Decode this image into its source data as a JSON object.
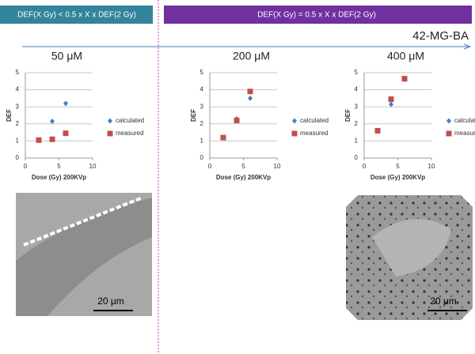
{
  "banners": [
    "DEF(X Gy) < 0.5 x X x DEF(2 Gy)",
    "DEF(X Gy)  = 0.5 x X x DEF(2 Gy)"
  ],
  "cell_line": "42-MG-BA",
  "scale_bars": [
    "20 μm",
    "20 μm"
  ],
  "chart_data": [
    {
      "type": "scatter",
      "title": "50 μM",
      "xlabel": "Dose (Gy) 200KVp",
      "ylabel": "DEF",
      "xlim": [
        0,
        10
      ],
      "ylim": [
        0,
        5
      ],
      "xticks": [
        0,
        5,
        10
      ],
      "yticks": [
        0,
        1,
        2,
        3,
        4,
        5
      ],
      "grid": true,
      "series": [
        {
          "name": "calculated",
          "color": "#4a7ebb",
          "marker": "diamond",
          "x": [
            4,
            6
          ],
          "values": [
            2.15,
            3.2
          ]
        },
        {
          "name": "measured",
          "color": "#c0504d",
          "marker": "square",
          "x": [
            2,
            4,
            6
          ],
          "values": [
            1.05,
            1.1,
            1.45
          ]
        }
      ]
    },
    {
      "type": "scatter",
      "title": "200 μM",
      "xlabel": "Dose (Gy) 200KVp",
      "ylabel": "DEF",
      "xlim": [
        0,
        10
      ],
      "ylim": [
        0,
        5
      ],
      "xticks": [
        0,
        5,
        10
      ],
      "yticks": [
        0,
        1,
        2,
        3,
        4,
        5
      ],
      "grid": true,
      "series": [
        {
          "name": "calculated",
          "color": "#4a7ebb",
          "marker": "diamond",
          "x": [
            4,
            6
          ],
          "values": [
            2.3,
            3.5
          ]
        },
        {
          "name": "measured",
          "color": "#c0504d",
          "marker": "square",
          "x": [
            2,
            4,
            6
          ],
          "values": [
            1.2,
            2.2,
            3.9
          ]
        }
      ]
    },
    {
      "type": "scatter",
      "title": "400 μM",
      "xlabel": "Dose (Gy) 200KVp",
      "ylabel": "DEF",
      "xlim": [
        0,
        10
      ],
      "ylim": [
        0,
        5
      ],
      "xticks": [
        0,
        5,
        10
      ],
      "yticks": [
        0,
        1,
        2,
        3,
        4,
        5
      ],
      "grid": true,
      "series": [
        {
          "name": "calculated",
          "color": "#4a7ebb",
          "marker": "diamond",
          "x": [
            4,
            6
          ],
          "values": [
            3.15,
            4.6
          ]
        },
        {
          "name": "measured",
          "color": "#c0504d",
          "marker": "square",
          "x": [
            2,
            4,
            6
          ],
          "values": [
            1.6,
            3.45,
            4.65
          ]
        }
      ]
    }
  ]
}
